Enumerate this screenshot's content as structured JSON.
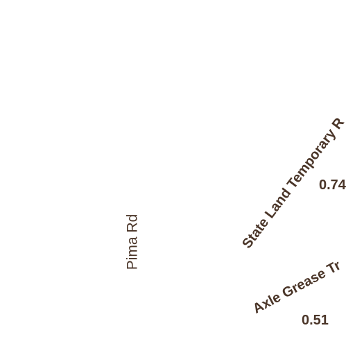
{
  "map": {
    "roads": [
      {
        "name": "Pima Rd"
      }
    ],
    "trails": [
      {
        "name": "State Land Temporary R",
        "distance": "0.74"
      },
      {
        "name": "Axle Grease Tr",
        "distance": "0.51"
      }
    ],
    "colors": {
      "background": "#ffffff",
      "label": "#4a3528"
    }
  }
}
